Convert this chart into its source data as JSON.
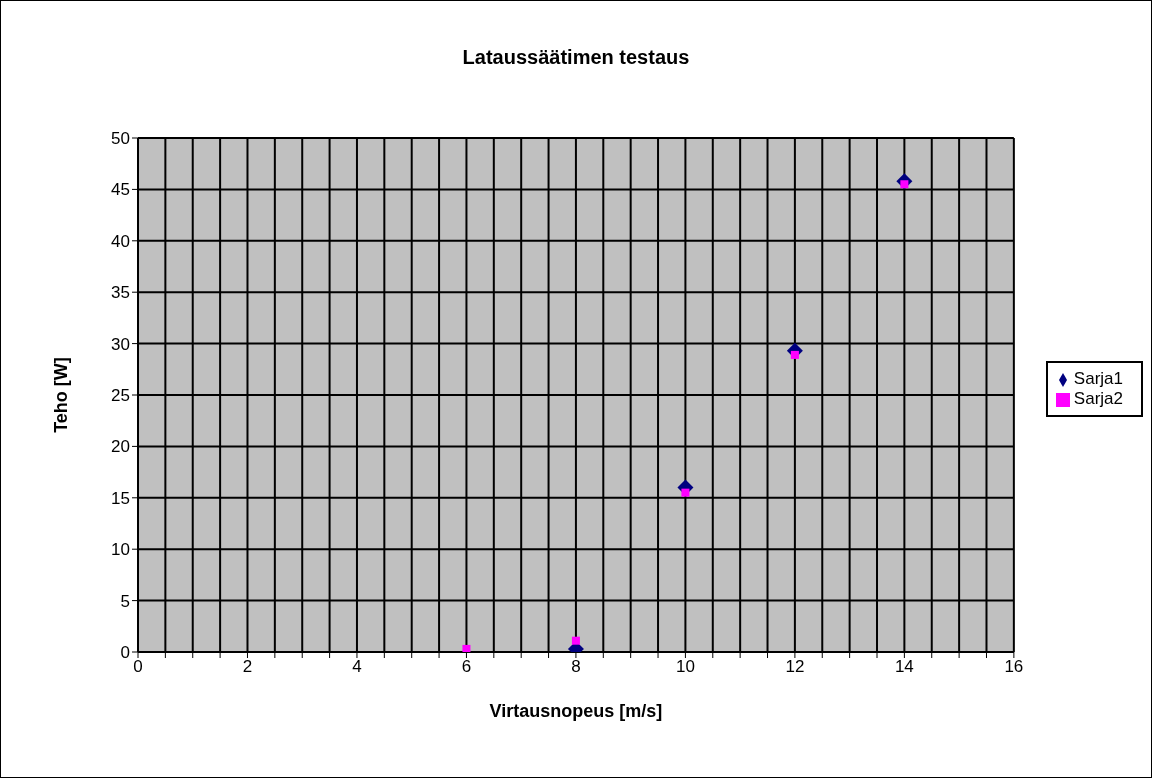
{
  "chart_data": {
    "type": "scatter",
    "title": "Lataussäätimen testaus",
    "xlabel": "Virtausnopeus [m/s]",
    "ylabel": "Teho [W]",
    "series": [
      {
        "name": "Sarja1",
        "color": "#000080",
        "marker": "diamond",
        "x": [
          8,
          10,
          12,
          14
        ],
        "values": [
          0.3,
          16,
          29.3,
          45.8
        ]
      },
      {
        "name": "Sarja2",
        "color": "#ff00ff",
        "marker": "square",
        "x": [
          6,
          8,
          10,
          12,
          14
        ],
        "values": [
          0.3,
          1.1,
          15.5,
          28.9,
          45.5
        ]
      }
    ],
    "xlim": [
      0,
      16
    ],
    "xticks": [
      0,
      {
        "value": 0.5,
        "label": null
      },
      {
        "value": 1,
        "label": null
      },
      {
        "value": 1.5,
        "label": null
      },
      2,
      {
        "value": 2.5,
        "label": null
      },
      {
        "value": 3,
        "label": null
      },
      {
        "value": 3.5,
        "label": null
      },
      4,
      {
        "value": 4.5,
        "label": null
      },
      {
        "value": 5,
        "label": null
      },
      {
        "value": 5.5,
        "label": null
      },
      6,
      {
        "value": 6.5,
        "label": null
      },
      {
        "value": 7,
        "label": null
      },
      {
        "value": 7.5,
        "label": null
      },
      8,
      {
        "value": 8.5,
        "label": null
      },
      {
        "value": 9,
        "label": null
      },
      {
        "value": 9.5,
        "label": null
      },
      10,
      {
        "value": 10.5,
        "label": null
      },
      {
        "value": 11,
        "label": null
      },
      {
        "value": 11.5,
        "label": null
      },
      12,
      {
        "value": 12.5,
        "label": null
      },
      {
        "value": 13,
        "label": null
      },
      {
        "value": 13.5,
        "label": null
      },
      14,
      {
        "value": 14.5,
        "label": null
      },
      {
        "value": 15,
        "label": null
      },
      {
        "value": 15.5,
        "label": null
      },
      16
    ],
    "ylim": [
      0,
      50
    ],
    "yticks": [
      0,
      5,
      10,
      15,
      20,
      25,
      30,
      35,
      40,
      45,
      50
    ],
    "grid": true,
    "legend": "right"
  }
}
